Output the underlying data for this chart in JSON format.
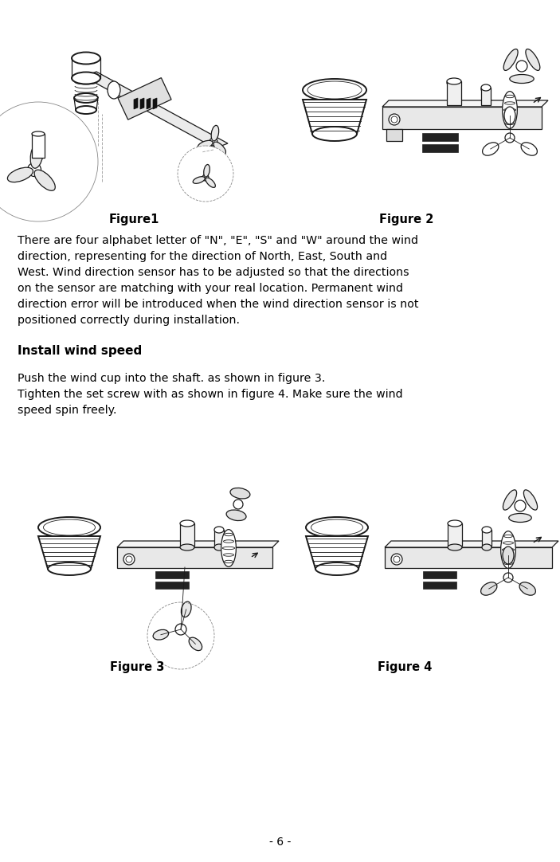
{
  "bg_color": "#ffffff",
  "text_color": "#000000",
  "figure1_label": "Figure1",
  "figure2_label": "Figure 2",
  "figure3_label": "Figure 3",
  "figure4_label": "Figure 4",
  "para1_lines": [
    "There are four alphabet letter of \"N\", \"E\", \"S\" and \"W\" around the wind",
    "direction, representing for the direction of North, East, South and",
    "West. Wind direction sensor has to be adjusted so that the directions",
    "on the sensor are matching with your real location. Permanent wind",
    "direction error will be introduced when the wind direction sensor is not",
    "positioned correctly during installation."
  ],
  "section_header": "Install wind speed",
  "para2_lines": [
    "Push the wind cup into the shaft. as shown in figure 3.",
    "Tighten the set screw with as shown in figure 4. Make sure the wind",
    "speed spin freely."
  ],
  "page_number": "- 6 -",
  "fig_width": 7.03,
  "fig_height": 10.82,
  "dpi": 100
}
